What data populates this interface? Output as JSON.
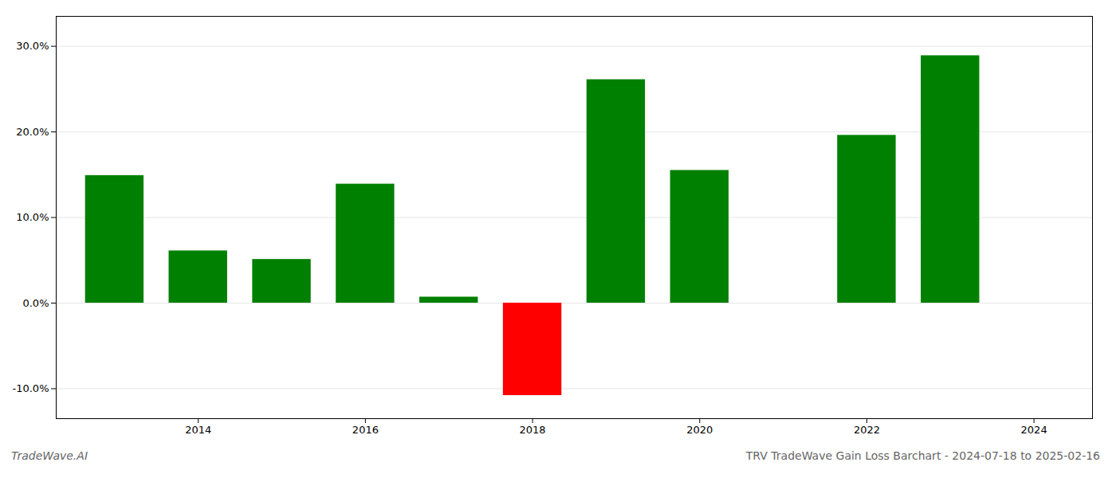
{
  "chart_data": {
    "type": "bar",
    "title": "TRV TradeWave Gain Loss Barchart - 2024-07-18 to 2025-02-16",
    "annotations": [
      "TradeWave.AI"
    ],
    "x": [
      2013,
      2014,
      2015,
      2016,
      2017,
      2018,
      2019,
      2020,
      2022,
      2023
    ],
    "values": [
      0.149,
      0.061,
      0.051,
      0.139,
      0.007,
      -0.108,
      0.261,
      0.155,
      0.196,
      0.289
    ],
    "colors": [
      "#008000",
      "#008000",
      "#008000",
      "#008000",
      "#008000",
      "#ff0000",
      "#008000",
      "#008000",
      "#008000",
      "#008000"
    ],
    "xlim": [
      2012.3,
      2024.7
    ],
    "xticks": [
      2014,
      2016,
      2018,
      2020,
      2022,
      2024
    ],
    "ylim": [
      -0.135,
      0.335
    ],
    "yticks": [
      {
        "value": -0.1,
        "label": "-10.0%"
      },
      {
        "value": 0.0,
        "label": "0.0%"
      },
      {
        "value": 0.1,
        "label": "10.0%"
      },
      {
        "value": 0.2,
        "label": "20.0%"
      },
      {
        "value": 0.3,
        "label": "30.0%"
      }
    ],
    "grid": true
  }
}
